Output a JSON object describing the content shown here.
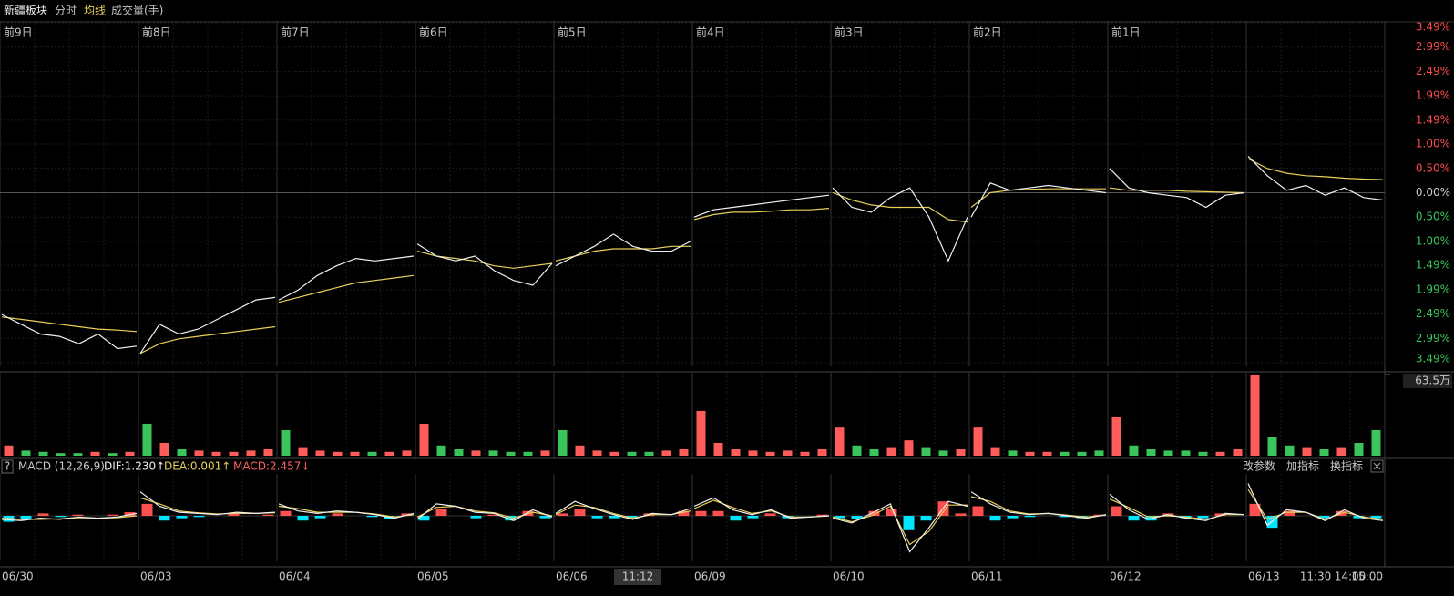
{
  "chart_data": [
    {
      "type": "line",
      "title": "新疆板块",
      "day_labels": [
        "前9日",
        "前8日",
        "前7日",
        "前6日",
        "前5日",
        "前4日",
        "前3日",
        "前2日",
        "前1日"
      ],
      "date_labels": [
        "06/30",
        "06/03",
        "06/04",
        "06/05",
        "06/06",
        "06/09",
        "06/10",
        "06/11",
        "06/12",
        "06/13"
      ],
      "time_labels": [
        "11:30",
        "14:00",
        "15:00"
      ],
      "cursor_label": "11:12",
      "ylim": [
        -3.49,
        3.49
      ],
      "yticks": [
        {
          "value": 3.49,
          "label": "3.49%"
        },
        {
          "value": 2.99,
          "label": "2.99%"
        },
        {
          "value": 2.49,
          "label": "2.49%"
        },
        {
          "value": 1.99,
          "label": "1.99%"
        },
        {
          "value": 1.49,
          "label": "1.49%"
        },
        {
          "value": 1.0,
          "label": "1.00%"
        },
        {
          "value": 0.5,
          "label": "0.50%"
        },
        {
          "value": 0,
          "label": "0.00%"
        },
        {
          "value": -0.5,
          "label": "0.50%"
        },
        {
          "value": -1.0,
          "label": "1.00%"
        },
        {
          "value": -1.49,
          "label": "1.49%"
        },
        {
          "value": -1.99,
          "label": "1.99%"
        },
        {
          "value": -2.49,
          "label": "2.49%"
        },
        {
          "value": -2.99,
          "label": "2.99%"
        },
        {
          "value": -3.49,
          "label": "3.49%"
        }
      ],
      "up_color": "#ff4d4d",
      "down_color": "#39c85a",
      "zero_color": "#cccccc",
      "grid": true,
      "series": [
        {
          "name": "分时",
          "color": "#f0f0f0",
          "values": [
            -2.5,
            -2.7,
            -2.9,
            -2.95,
            -3.1,
            -2.9,
            -3.2,
            -3.15,
            -3.3,
            -2.7,
            -2.9,
            -2.8,
            -2.6,
            -2.4,
            -2.2,
            -2.15,
            -2.2,
            -2.0,
            -1.7,
            -1.5,
            -1.35,
            -1.4,
            -1.35,
            -1.3,
            -1.05,
            -1.3,
            -1.4,
            -1.3,
            -1.6,
            -1.8,
            -1.9,
            -1.45,
            -1.5,
            -1.3,
            -1.1,
            -0.85,
            -1.1,
            -1.2,
            -1.2,
            -1.0,
            -0.5,
            -0.35,
            -0.3,
            -0.25,
            -0.2,
            -0.15,
            -0.1,
            -0.05,
            0.1,
            -0.3,
            -0.4,
            -0.1,
            0.1,
            -0.5,
            -1.4,
            -0.5,
            -0.5,
            0.2,
            0.05,
            0.1,
            0.15,
            0.1,
            0.05,
            0.0,
            0.5,
            0.1,
            0.0,
            -0.05,
            -0.1,
            -0.3,
            -0.05,
            0.0,
            0.75,
            0.35,
            0.05,
            0.15,
            -0.05,
            0.1,
            -0.1,
            -0.15
          ]
        },
        {
          "name": "均线",
          "color": "#e8d05a",
          "values": [
            -2.55,
            -2.6,
            -2.65,
            -2.7,
            -2.75,
            -2.8,
            -2.82,
            -2.85,
            -3.3,
            -3.1,
            -3.0,
            -2.95,
            -2.9,
            -2.85,
            -2.8,
            -2.75,
            -2.25,
            -2.15,
            -2.05,
            -1.95,
            -1.85,
            -1.8,
            -1.75,
            -1.7,
            -1.2,
            -1.3,
            -1.35,
            -1.4,
            -1.5,
            -1.55,
            -1.5,
            -1.45,
            -1.4,
            -1.3,
            -1.2,
            -1.15,
            -1.15,
            -1.15,
            -1.1,
            -1.1,
            -0.55,
            -0.45,
            -0.4,
            -0.4,
            -0.38,
            -0.35,
            -0.35,
            -0.32,
            0.0,
            -0.15,
            -0.25,
            -0.3,
            -0.3,
            -0.3,
            -0.55,
            -0.6,
            -0.3,
            0.0,
            0.05,
            0.07,
            0.08,
            0.08,
            0.08,
            0.08,
            0.1,
            0.05,
            0.05,
            0.05,
            0.03,
            0.02,
            0.01,
            0.0,
            0.7,
            0.5,
            0.4,
            0.35,
            0.33,
            0.3,
            0.28,
            0.27
          ]
        }
      ]
    },
    {
      "type": "bar",
      "title": "成交量(手)",
      "ylim": [
        0,
        63.5
      ],
      "yticks": [
        {
          "value": 63.5,
          "label": "63.5万"
        }
      ],
      "up_color": "#ff5c5c",
      "down_color": "#3cc45c",
      "values": [
        8,
        4,
        3,
        2,
        2,
        3,
        2,
        3,
        25,
        10,
        5,
        4,
        3,
        3,
        4,
        5,
        20,
        6,
        4,
        3,
        3,
        3,
        3,
        4,
        25,
        8,
        5,
        4,
        4,
        3,
        3,
        4,
        20,
        8,
        4,
        3,
        3,
        3,
        4,
        5,
        35,
        10,
        5,
        4,
        3,
        4,
        3,
        5,
        22,
        8,
        5,
        6,
        12,
        6,
        4,
        5,
        22,
        6,
        4,
        3,
        3,
        3,
        3,
        4,
        30,
        8,
        5,
        4,
        4,
        3,
        3,
        5,
        63.5,
        15,
        8,
        6,
        5,
        6,
        10,
        20
      ]
    },
    {
      "type": "macd",
      "title": "MACD (12,26,9)",
      "help": "?",
      "buttons": [
        "改参数",
        "加指标",
        "换指标"
      ],
      "ylim": [
        -3.5,
        3.5
      ],
      "up_color": "#ff5050",
      "down_color": "#00e5ff",
      "series": [
        {
          "name": "DIF:1.230↑",
          "color": "#f0f0f0",
          "values": [
            -0.3,
            -0.4,
            -0.2,
            -0.3,
            -0.1,
            -0.2,
            -0.1,
            0.2,
            2.0,
            0.8,
            0.3,
            0.2,
            0.1,
            0.3,
            0.2,
            0.3,
            1.0,
            0.4,
            0.2,
            0.4,
            0.3,
            0.1,
            -0.2,
            0.2,
            -0.3,
            1.0,
            0.8,
            0.3,
            0.2,
            -0.4,
            0.5,
            -0.1,
            0.2,
            1.2,
            0.6,
            0.1,
            -0.3,
            0.2,
            0.1,
            0.6,
            0.8,
            1.5,
            0.5,
            0.1,
            0.5,
            -0.2,
            -0.1,
            0.0,
            -0.2,
            -0.6,
            0.2,
            1.0,
            -3.0,
            -1.0,
            1.2,
            0.8,
            2.0,
            1.0,
            0.3,
            0.1,
            0.2,
            0.0,
            -0.2,
            0.1,
            1.8,
            0.5,
            -0.3,
            0.1,
            -0.2,
            -0.4,
            0.2,
            0.1,
            2.7,
            -0.8,
            0.5,
            0.3,
            -0.4,
            0.5,
            -0.2,
            -0.4
          ]
        },
        {
          "name": "DEA:0.001↑",
          "color": "#e8d05a",
          "values": [
            -0.2,
            -0.3,
            -0.3,
            -0.25,
            -0.15,
            -0.2,
            -0.15,
            0.0,
            1.5,
            1.0,
            0.4,
            0.25,
            0.15,
            0.2,
            0.2,
            0.25,
            0.8,
            0.6,
            0.3,
            0.3,
            0.3,
            0.15,
            -0.1,
            0.1,
            -0.1,
            0.7,
            0.8,
            0.4,
            0.25,
            -0.2,
            0.3,
            0.0,
            0.1,
            0.9,
            0.7,
            0.2,
            -0.2,
            0.1,
            0.1,
            0.4,
            0.6,
            1.3,
            0.7,
            0.2,
            0.4,
            -0.1,
            -0.1,
            0.0,
            -0.1,
            -0.5,
            0.0,
            0.8,
            -2.4,
            -1.3,
            0.9,
            0.9,
            1.6,
            1.2,
            0.4,
            0.15,
            0.2,
            0.05,
            -0.1,
            0.05,
            1.4,
            0.7,
            -0.1,
            0.0,
            -0.1,
            -0.3,
            0.1,
            0.1,
            2.2,
            -0.3,
            0.3,
            0.3,
            -0.3,
            0.3,
            -0.1,
            -0.3
          ]
        },
        {
          "name": "MACD:2.457↓",
          "color": "#ff6060",
          "values": [
            -0.5,
            -0.3,
            0.2,
            -0.1,
            0.1,
            0.0,
            0.1,
            0.3,
            1.0,
            -0.4,
            -0.2,
            -0.1,
            0.0,
            0.2,
            0.0,
            0.1,
            0.4,
            -0.4,
            -0.2,
            0.2,
            0.0,
            -0.1,
            -0.3,
            0.2,
            -0.4,
            0.6,
            0.0,
            -0.2,
            0.1,
            -0.4,
            0.4,
            -0.2,
            0.2,
            0.6,
            -0.2,
            -0.2,
            -0.2,
            0.2,
            0.0,
            0.4,
            0.4,
            0.4,
            -0.4,
            -0.2,
            0.2,
            -0.2,
            0.0,
            0.1,
            -0.2,
            -0.3,
            0.4,
            0.6,
            -1.2,
            -0.4,
            1.2,
            0.2,
            0.8,
            -0.4,
            -0.2,
            -0.1,
            0.0,
            -0.1,
            -0.2,
            0.1,
            0.8,
            -0.4,
            -0.4,
            0.2,
            -0.2,
            -0.2,
            0.2,
            0.0,
            1.0,
            -1.0,
            0.4,
            0.0,
            -0.2,
            0.4,
            -0.2,
            -0.2
          ]
        }
      ]
    }
  ]
}
